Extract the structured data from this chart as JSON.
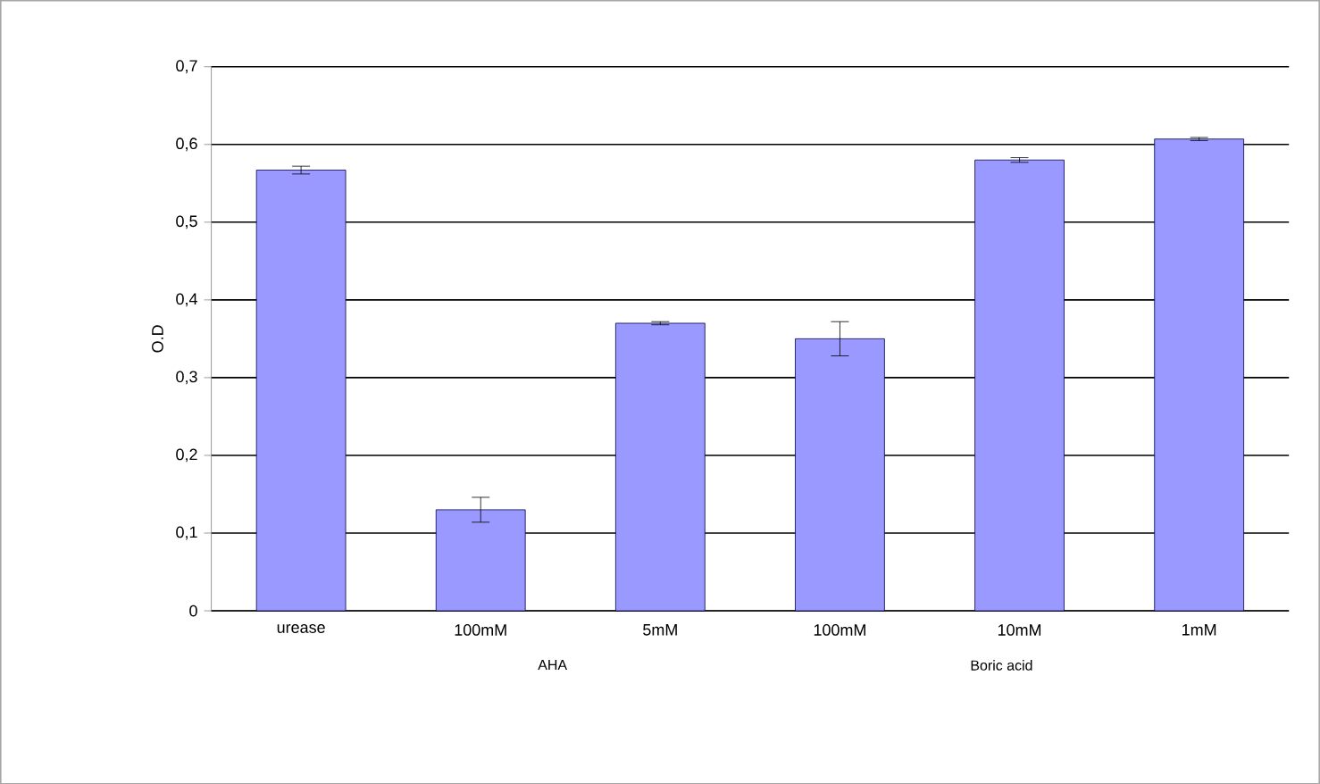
{
  "chart_data": {
    "type": "bar",
    "ylabel": "O.D",
    "categories": [
      "urease",
      "100mM",
      "5mM",
      "100mM",
      "10mM",
      "1mM"
    ],
    "values": [
      0.567,
      0.13,
      0.37,
      0.35,
      0.58,
      0.607
    ],
    "errors": [
      0.005,
      0.016,
      0.002,
      0.022,
      0.003,
      0.002
    ],
    "color": "#9999ff",
    "ylim": [
      0,
      0.7
    ],
    "yticks": [
      0,
      {
        "value": 0.1,
        "label": "0,1"
      },
      {
        "value": 0.2,
        "label": "0,2"
      },
      {
        "value": 0.3,
        "label": "0,3"
      },
      {
        "value": 0.4,
        "label": "0,4"
      },
      {
        "value": 0.5,
        "label": "0,5"
      },
      {
        "value": 0.6,
        "label": "0,6"
      },
      {
        "value": 0.7,
        "label": "0,7"
      }
    ],
    "grid": "y",
    "annotations": [
      "AHA",
      "Boric acid"
    ]
  }
}
